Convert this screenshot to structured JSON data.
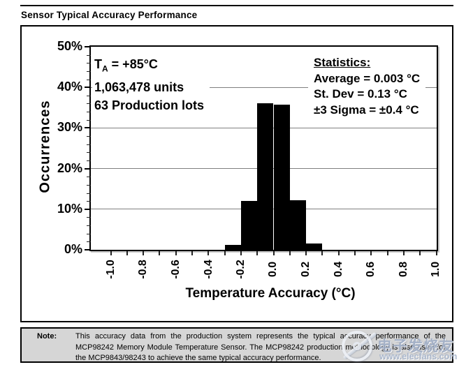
{
  "header": {
    "title": "Sensor Typical Accuracy Performance"
  },
  "chart_data": {
    "type": "bar",
    "subtype": "histogram",
    "title": "Sensor Typical Accuracy Performance",
    "xlabel": "Temperature Accuracy (°C)",
    "ylabel": "Occurrences",
    "xlim": [
      -1.0,
      1.0
    ],
    "ylim": [
      0,
      50
    ],
    "grid": "horizontal-major",
    "bar_color": "#000000",
    "bin_width": 0.1,
    "bin_centers": [
      -0.25,
      -0.15,
      -0.05,
      0.05,
      0.15,
      0.25
    ],
    "values": [
      1.2,
      12.0,
      36.1,
      35.7,
      12.2,
      1.5
    ],
    "y_major_step": 10,
    "y_minor_step": 2,
    "x_major_step": 0.2,
    "x_minor_step": 0.1,
    "y_tick_labels": [
      "0%",
      "10%",
      "20%",
      "30%",
      "40%",
      "50%"
    ],
    "x_tick_labels": [
      "-1.0",
      "-0.8",
      "-0.6",
      "-0.4",
      "-0.2",
      "0.0",
      "0.2",
      "0.4",
      "0.6",
      "0.8",
      "1.0"
    ],
    "annotations": {
      "conditions": {
        "ta_base": "T",
        "ta_sub": "A",
        "ta_rest": " = +85°C",
        "units_line": "1,063,478 units",
        "lots_line": "63 Production lots"
      },
      "statistics": {
        "heading": "Statistics:",
        "lines": [
          "Average = 0.003 °C",
          "St. Dev = 0.13 °C",
          "±3 Sigma = ±0.4 °C"
        ]
      }
    }
  },
  "note": {
    "label": "Note:",
    "lines": [
      "This accuracy data from the production system represents the typical accuracy performance of the",
      "MCP98242 Memory Module Temperature Sensor. The MCP98242 production methodology is also used for",
      "the MCP9843/98243 to achieve the same typical accuracy performance."
    ]
  },
  "watermark": {
    "cn": "电子发烧友",
    "url": "www.elecfans.com"
  }
}
